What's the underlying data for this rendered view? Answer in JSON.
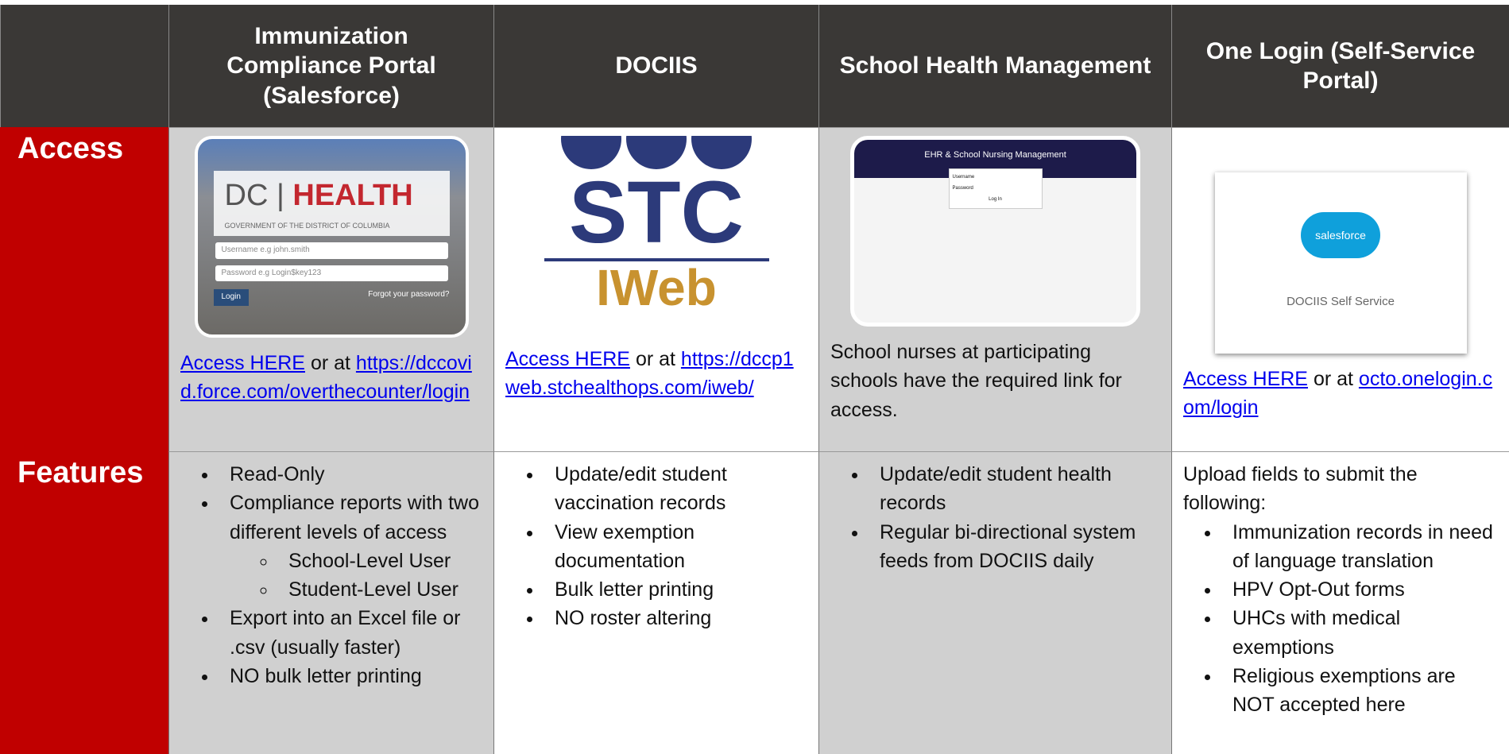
{
  "table": {
    "headers": [
      "Immunization Compliance Portal (Salesforce)",
      "DOCIIS",
      "School Health Management",
      "One Login (Self-Service Portal)"
    ],
    "rows": [
      {
        "label": "Access",
        "cells": [
          {
            "image": {
              "brand": "DC",
              "brand_strong": "HEALTH",
              "subtitle": "GOVERNMENT OF THE DISTRICT OF COLUMBIA",
              "username": "Username e.g john.smith",
              "password": "Password e.g Login$key123",
              "button": "Login",
              "forgot": "Forgot your password?"
            },
            "link": "Access HERE",
            "text": "or at",
            "url": "https://dccovid.force.com/overthecounter/login"
          },
          {
            "image": {
              "logo": "STC",
              "sublogo": "IWeb"
            },
            "link": "Access HERE",
            "text": "or at",
            "url": "https://dccp1web.stchealthops.com/iweb/"
          },
          {
            "image": {
              "title": "EHR & School Nursing Management",
              "username": "Username",
              "password": "Password",
              "button": "Log In"
            },
            "text": "School nurses at participating schools have the required link for access."
          },
          {
            "image": {
              "logo": "salesforce",
              "caption": "DOCIIS Self Service"
            },
            "link": "Access HERE",
            "text": "or at",
            "url": "octo.onelogin.com/login"
          }
        ]
      },
      {
        "label": "Features",
        "cells": [
          {
            "items": [
              {
                "text": "Read-Only"
              },
              {
                "text": "Compliance reports with two different levels of access",
                "subitems": [
                  "School-Level User",
                  "Student-Level User"
                ]
              },
              {
                "text": "Export into an Excel file or .csv (usually faster)"
              },
              {
                "text": "NO bulk letter printing"
              }
            ]
          },
          {
            "items": [
              {
                "text": "Update/edit student vaccination records"
              },
              {
                "text": "View exemption documentation"
              },
              {
                "text": "Bulk letter printing"
              },
              {
                "text": "NO roster altering"
              }
            ]
          },
          {
            "items": [
              {
                "text": "Update/edit student health records"
              },
              {
                "text": "Regular bi-directional system feeds from DOCIIS daily"
              }
            ]
          },
          {
            "intro": "Upload fields to submit the following:",
            "items": [
              {
                "text": "Immunization records in need of language translation"
              },
              {
                "text": "HPV Opt-Out forms"
              },
              {
                "text": "UHCs with medical exemptions"
              },
              {
                "text": "Religious exemptions are NOT accepted here"
              }
            ]
          }
        ]
      }
    ]
  }
}
